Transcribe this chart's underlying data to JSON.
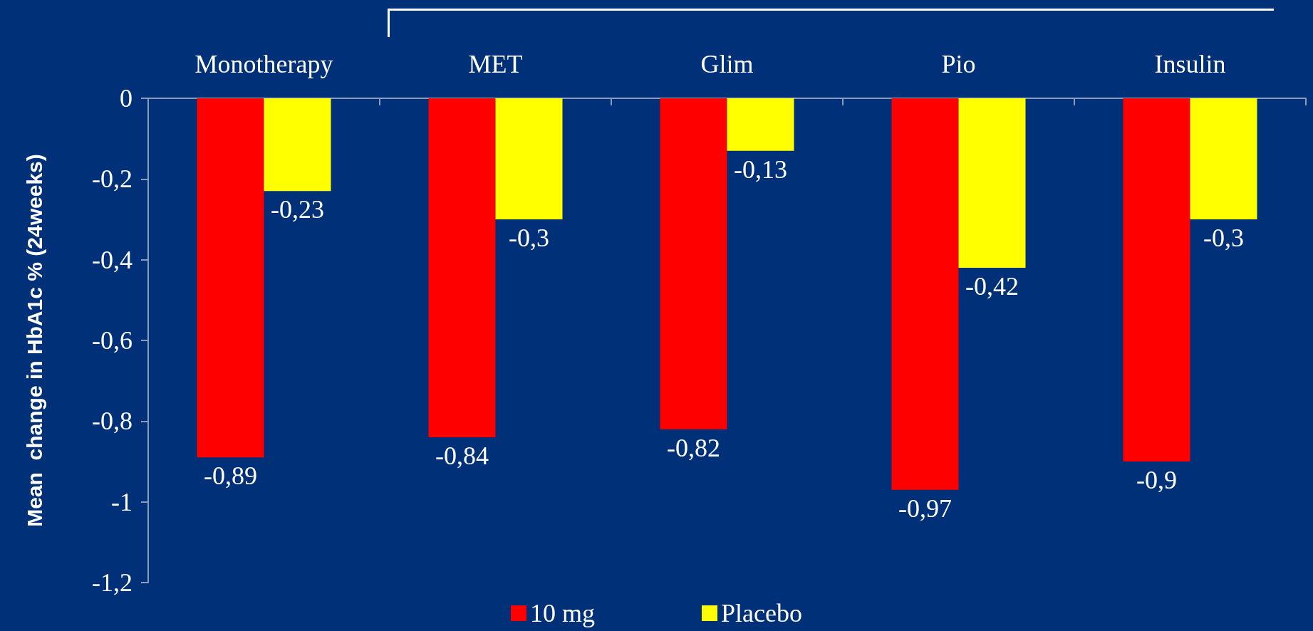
{
  "chart_data": {
    "type": "bar",
    "ylabel": "Mean  change in HbA1c % (24weeks)",
    "categories": [
      "Monotherapy",
      "MET",
      "Glim",
      "Pio",
      "Insulin"
    ],
    "series": [
      {
        "name": "10 mg",
        "color": "#ff0000",
        "values": [
          -0.89,
          -0.84,
          -0.82,
          -0.97,
          -0.9
        ],
        "value_labels": [
          "-0,89",
          "-0,84",
          "-0,82",
          "-0,97",
          "-0,9"
        ]
      },
      {
        "name": "Placebo",
        "color": "#ffff00",
        "values": [
          -0.23,
          -0.3,
          -0.13,
          -0.42,
          -0.3
        ],
        "value_labels": [
          "-0,23",
          "-0,3",
          "-0,13",
          "-0,42",
          "-0,3"
        ]
      }
    ],
    "ylim": [
      -1.2,
      0
    ],
    "yticks": [
      {
        "value": 0,
        "label": "0"
      },
      {
        "value": -0.2,
        "label": "-0,2"
      },
      {
        "value": -0.4,
        "label": "-0,4"
      },
      {
        "value": -0.6,
        "label": "-0,6"
      },
      {
        "value": -0.8,
        "label": "-0,8"
      },
      {
        "value": -1,
        "label": "-1"
      },
      {
        "value": -1.2,
        "label": "-1,2"
      }
    ],
    "legend": "bottom",
    "grid": false
  }
}
